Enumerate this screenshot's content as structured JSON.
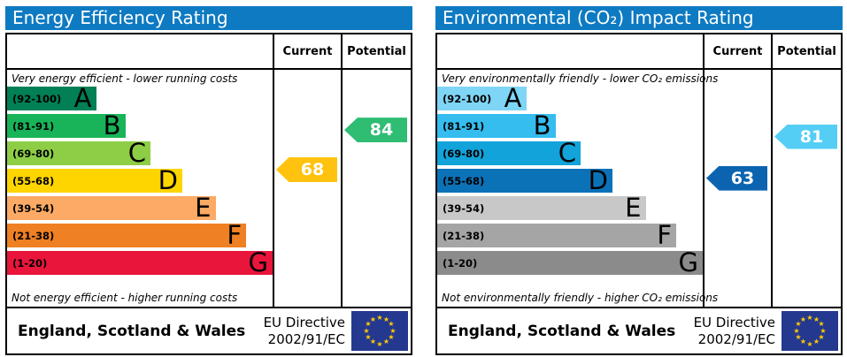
{
  "theme": {
    "header_bg": "#0e7ac2",
    "header_text": "#ffffff",
    "border": "#000000"
  },
  "eu_flag": {
    "bg": "#24388f",
    "stars": "#ffcc00"
  },
  "panels": [
    {
      "title": "Energy Efficiency Rating",
      "header": {
        "current": "Current",
        "potential": "Potential"
      },
      "caption_top": "Very energy efficient - lower running costs",
      "caption_bottom": "Not energy efficient - higher running costs",
      "bands": [
        {
          "letter": "A",
          "range_label": "(92-100)",
          "min": 92,
          "max": 100,
          "color": "#008054",
          "width_pct": 33.5
        },
        {
          "letter": "B",
          "range_label": "(81-91)",
          "min": 81,
          "max": 91,
          "color": "#19b459",
          "width_pct": 44.5
        },
        {
          "letter": "C",
          "range_label": "(69-80)",
          "min": 69,
          "max": 80,
          "color": "#8dce46",
          "width_pct": 54
        },
        {
          "letter": "D",
          "range_label": "(55-68)",
          "min": 55,
          "max": 68,
          "color": "#ffd500",
          "width_pct": 66
        },
        {
          "letter": "E",
          "range_label": "(39-54)",
          "min": 39,
          "max": 54,
          "color": "#fcaa65",
          "width_pct": 78.5
        },
        {
          "letter": "F",
          "range_label": "(21-38)",
          "min": 21,
          "max": 38,
          "color": "#ef8023",
          "width_pct": 90
        },
        {
          "letter": "G",
          "range_label": "(1-20)",
          "min": 1,
          "max": 20,
          "color": "#e9153b",
          "width_pct": 100
        }
      ],
      "current": {
        "value": 68,
        "color": "#ffc20e"
      },
      "potential": {
        "value": 84,
        "color": "#2ebd73"
      },
      "footer": {
        "region": "England, Scotland & Wales",
        "directive_line1": "EU Directive",
        "directive_line2": "2002/91/EC"
      }
    },
    {
      "title": "Environmental (CO₂) Impact Rating",
      "header": {
        "current": "Current",
        "potential": "Potential"
      },
      "caption_top": "Very environmentally friendly - lower CO₂ emissions",
      "caption_bottom": "Not environmentally friendly - higher CO₂ emissions",
      "bands": [
        {
          "letter": "A",
          "range_label": "(92-100)",
          "min": 92,
          "max": 100,
          "color": "#7fd5f5",
          "width_pct": 33.5
        },
        {
          "letter": "B",
          "range_label": "(81-91)",
          "min": 81,
          "max": 91,
          "color": "#35bdf0",
          "width_pct": 44.5
        },
        {
          "letter": "C",
          "range_label": "(69-80)",
          "min": 69,
          "max": 80,
          "color": "#12a3da",
          "width_pct": 54
        },
        {
          "letter": "D",
          "range_label": "(55-68)",
          "min": 55,
          "max": 68,
          "color": "#0c72b8",
          "width_pct": 66
        },
        {
          "letter": "E",
          "range_label": "(39-54)",
          "min": 39,
          "max": 54,
          "color": "#c8c8c8",
          "width_pct": 78.5
        },
        {
          "letter": "F",
          "range_label": "(21-38)",
          "min": 21,
          "max": 38,
          "color": "#a5a5a5",
          "width_pct": 90
        },
        {
          "letter": "G",
          "range_label": "(1-20)",
          "min": 1,
          "max": 20,
          "color": "#8b8b8b",
          "width_pct": 100
        }
      ],
      "current": {
        "value": 63,
        "color": "#0c64b0"
      },
      "potential": {
        "value": 81,
        "color": "#55cef5"
      },
      "footer": {
        "region": "England, Scotland & Wales",
        "directive_line1": "EU Directive",
        "directive_line2": "2002/91/EC"
      }
    }
  ],
  "chart_data": [
    {
      "type": "bar",
      "orientation": "horizontal",
      "title": "Energy Efficiency Rating",
      "categories": [
        "A",
        "B",
        "C",
        "D",
        "E",
        "F",
        "G"
      ],
      "band_ranges": [
        [
          92,
          100
        ],
        [
          81,
          91
        ],
        [
          69,
          80
        ],
        [
          55,
          68
        ],
        [
          39,
          54
        ],
        [
          21,
          38
        ],
        [
          1,
          20
        ]
      ],
      "markers": {
        "current": 68,
        "potential": 84
      },
      "current_band": "D",
      "potential_band": "B",
      "scale": [
        1,
        100
      ],
      "annotations": {
        "top": "Very energy efficient - lower running costs",
        "bottom": "Not energy efficient - higher running costs"
      },
      "footer": "England, Scotland & Wales · EU Directive 2002/91/EC"
    },
    {
      "type": "bar",
      "orientation": "horizontal",
      "title": "Environmental (CO₂) Impact Rating",
      "categories": [
        "A",
        "B",
        "C",
        "D",
        "E",
        "F",
        "G"
      ],
      "band_ranges": [
        [
          92,
          100
        ],
        [
          81,
          91
        ],
        [
          69,
          80
        ],
        [
          55,
          68
        ],
        [
          39,
          54
        ],
        [
          21,
          38
        ],
        [
          1,
          20
        ]
      ],
      "markers": {
        "current": 63,
        "potential": 81
      },
      "current_band": "D",
      "potential_band": "B",
      "scale": [
        1,
        100
      ],
      "annotations": {
        "top": "Very environmentally friendly - lower CO₂ emissions",
        "bottom": "Not environmentally friendly - higher CO₂ emissions"
      },
      "footer": "England, Scotland & Wales · EU Directive 2002/91/EC"
    }
  ]
}
